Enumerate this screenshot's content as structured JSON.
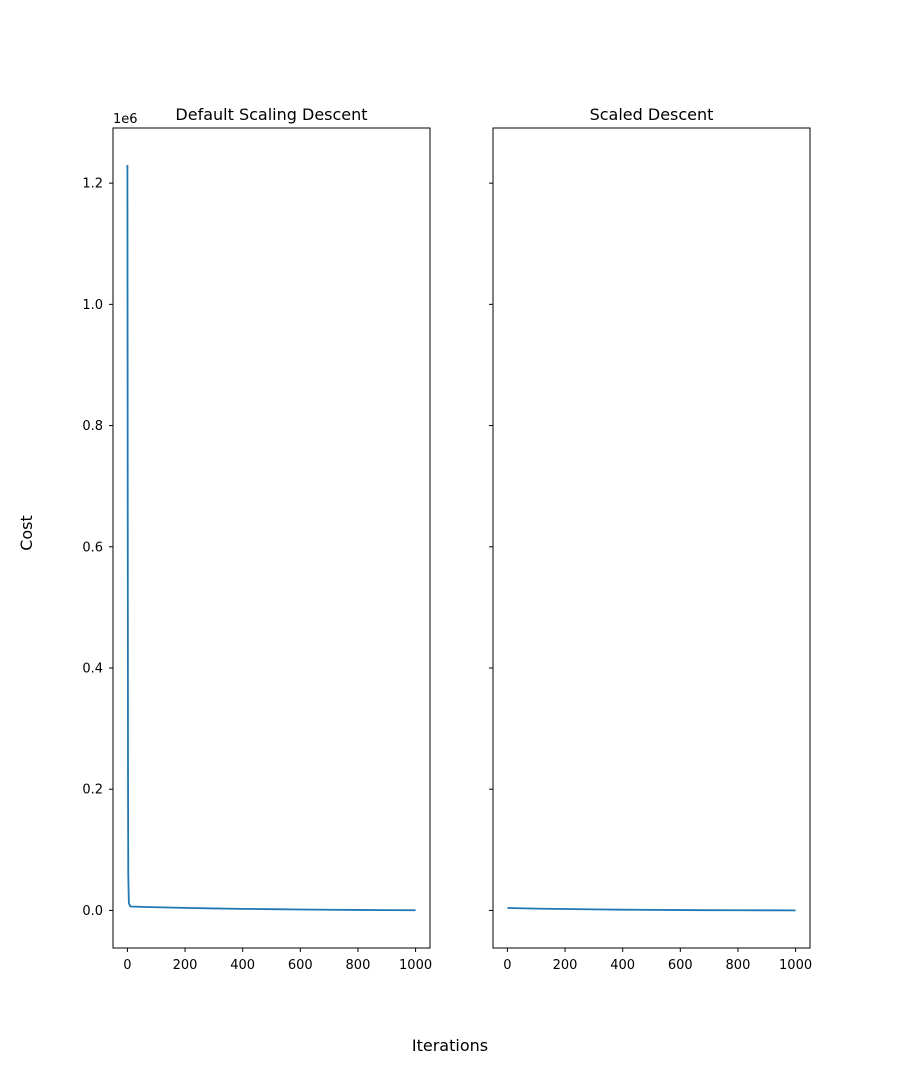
{
  "chart_data": {
    "type": "line",
    "xlabel": "Iterations",
    "ylabel": "Cost",
    "y_offset_label": "1e6",
    "y_scale": 1000000,
    "ylim": [
      -0.062,
      1.291
    ],
    "yticks": [
      0.0,
      0.2,
      0.4,
      0.6,
      0.8,
      1.0,
      1.2
    ],
    "ytick_labels": [
      "0.0",
      "0.2",
      "0.4",
      "0.6",
      "0.8",
      "1.0",
      "1.2"
    ],
    "shared_y": true,
    "line_color": "#1f77b4",
    "subplots": [
      {
        "title": "Default Scaling Descent",
        "xlim": [
          -50,
          1050
        ],
        "xticks": [
          0,
          200,
          400,
          600,
          800,
          1000
        ],
        "xtick_labels": [
          "0",
          "200",
          "400",
          "600",
          "800",
          "1000"
        ],
        "show_ytick_labels": true,
        "series": [
          {
            "x": [
              0,
              1,
              2,
              3,
              5,
              10,
              50,
              100,
              200,
              300,
              400,
              500,
              600,
              700,
              800,
              900,
              1000
            ],
            "y": [
              1.23,
              0.7,
              0.25,
              0.06,
              0.012,
              0.0065,
              0.0058,
              0.0052,
              0.0042,
              0.0033,
              0.0026,
              0.002,
              0.0015,
              0.0011,
              0.0008,
              0.0005,
              0.0003
            ]
          }
        ]
      },
      {
        "title": "Scaled Descent",
        "xlim": [
          -50,
          1050
        ],
        "xticks": [
          0,
          200,
          400,
          600,
          800,
          1000
        ],
        "xtick_labels": [
          "0",
          "200",
          "400",
          "600",
          "800",
          "1000"
        ],
        "show_ytick_labels": false,
        "series": [
          {
            "x": [
              0,
              100,
              200,
              300,
              400,
              500,
              600,
              700,
              800,
              900,
              1000
            ],
            "y": [
              0.004,
              0.003,
              0.0023,
              0.0017,
              0.0012,
              0.0009,
              0.0006,
              0.0004,
              0.0003,
              0.0002,
              0.0001
            ]
          }
        ]
      }
    ]
  }
}
